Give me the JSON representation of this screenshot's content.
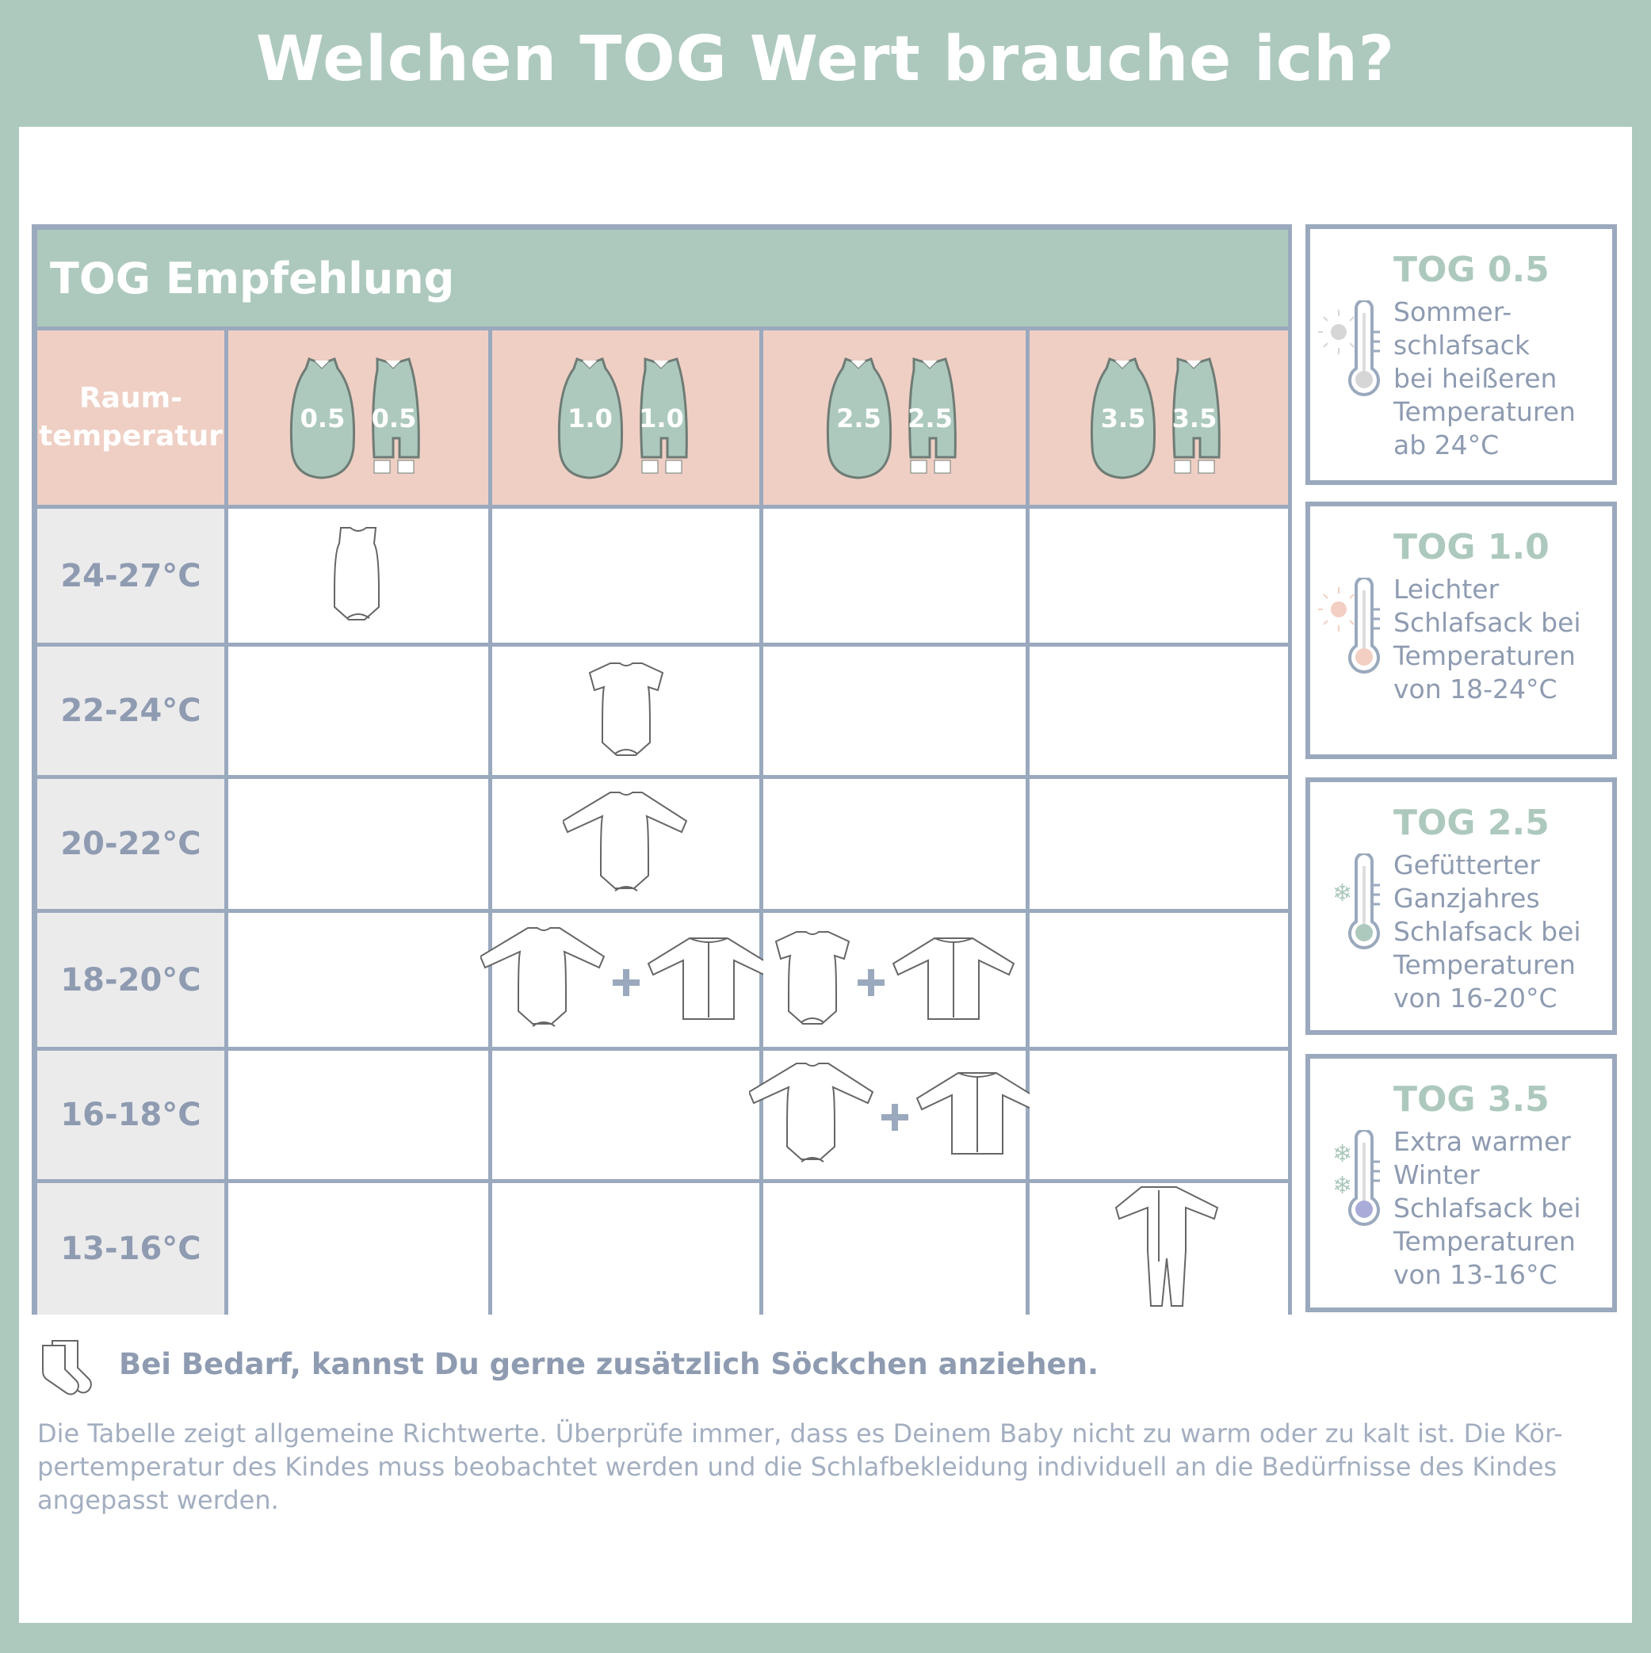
{
  "title": "Welchen TOG Wert brauche ich?",
  "table": {
    "heading": "TOG Empfehlung",
    "corner": [
      "Raum-",
      "temperatur"
    ],
    "columns": [
      "0.5",
      "1.0",
      "2.5",
      "3.5"
    ],
    "rows": [
      {
        "label": "24-27°C",
        "cells": [
          [
            "sleeveless-bodysuit"
          ],
          [],
          [],
          []
        ]
      },
      {
        "label": "22-24°C",
        "cells": [
          [],
          [
            "short-sleeve-bodysuit"
          ],
          [],
          []
        ]
      },
      {
        "label": "20-22°C",
        "cells": [
          [],
          [
            "long-sleeve-bodysuit"
          ],
          [],
          []
        ]
      },
      {
        "label": "18-20°C",
        "cells": [
          [],
          [
            "long-sleeve-bodysuit",
            "plus",
            "jacket"
          ],
          [
            "short-sleeve-bodysuit",
            "plus",
            "jacket"
          ],
          []
        ]
      },
      {
        "label": "16-18°C",
        "cells": [
          [],
          [],
          [
            "long-sleeve-bodysuit",
            "plus",
            "jacket"
          ],
          []
        ]
      },
      {
        "label": "13-16°C",
        "cells": [
          [],
          [],
          [],
          [
            "sleepsuit"
          ]
        ]
      }
    ]
  },
  "legend": [
    {
      "title": "TOG 0.5",
      "text": "Sommer-\nschlafsack\nbei heißeren\nTemperaturen\nab 24°C",
      "icon": "sun-thermometer",
      "color": "#d6d6d6"
    },
    {
      "title": "TOG 1.0",
      "text": "Leichter\nSchlafsack bei\nTemperaturen\nvon 18-24°C",
      "icon": "sun-thermometer",
      "color": "#f2cfc2"
    },
    {
      "title": "TOG 2.5",
      "text": "Gefütterter\nGanzjahres\nSchlafsack bei\nTemperaturen\nvon 16-20°C",
      "icon": "snowflake-thermometer",
      "color": "#adc9bd"
    },
    {
      "title": "TOG 3.5",
      "text": "Extra warmer\nWinter\nSchlafsack bei\nTemperaturen\nvon 13-16°C",
      "icon": "snowflakes-thermometer",
      "color": "#a9acd8"
    }
  ],
  "sock_note": "Bei Bedarf, kannst Du gerne zusätzlich Söckchen anziehen.",
  "disclaimer": "Die Tabelle zeigt allgemeine Richtwerte. Überprüfe immer, dass es Deinem Baby nicht zu warm oder zu kalt ist. Die Kör-pertemperatur des Kindes muss beobachtet werden und die Schlafbekleidung individuell an die Bedürfnisse des Kindes angepasst werden."
}
